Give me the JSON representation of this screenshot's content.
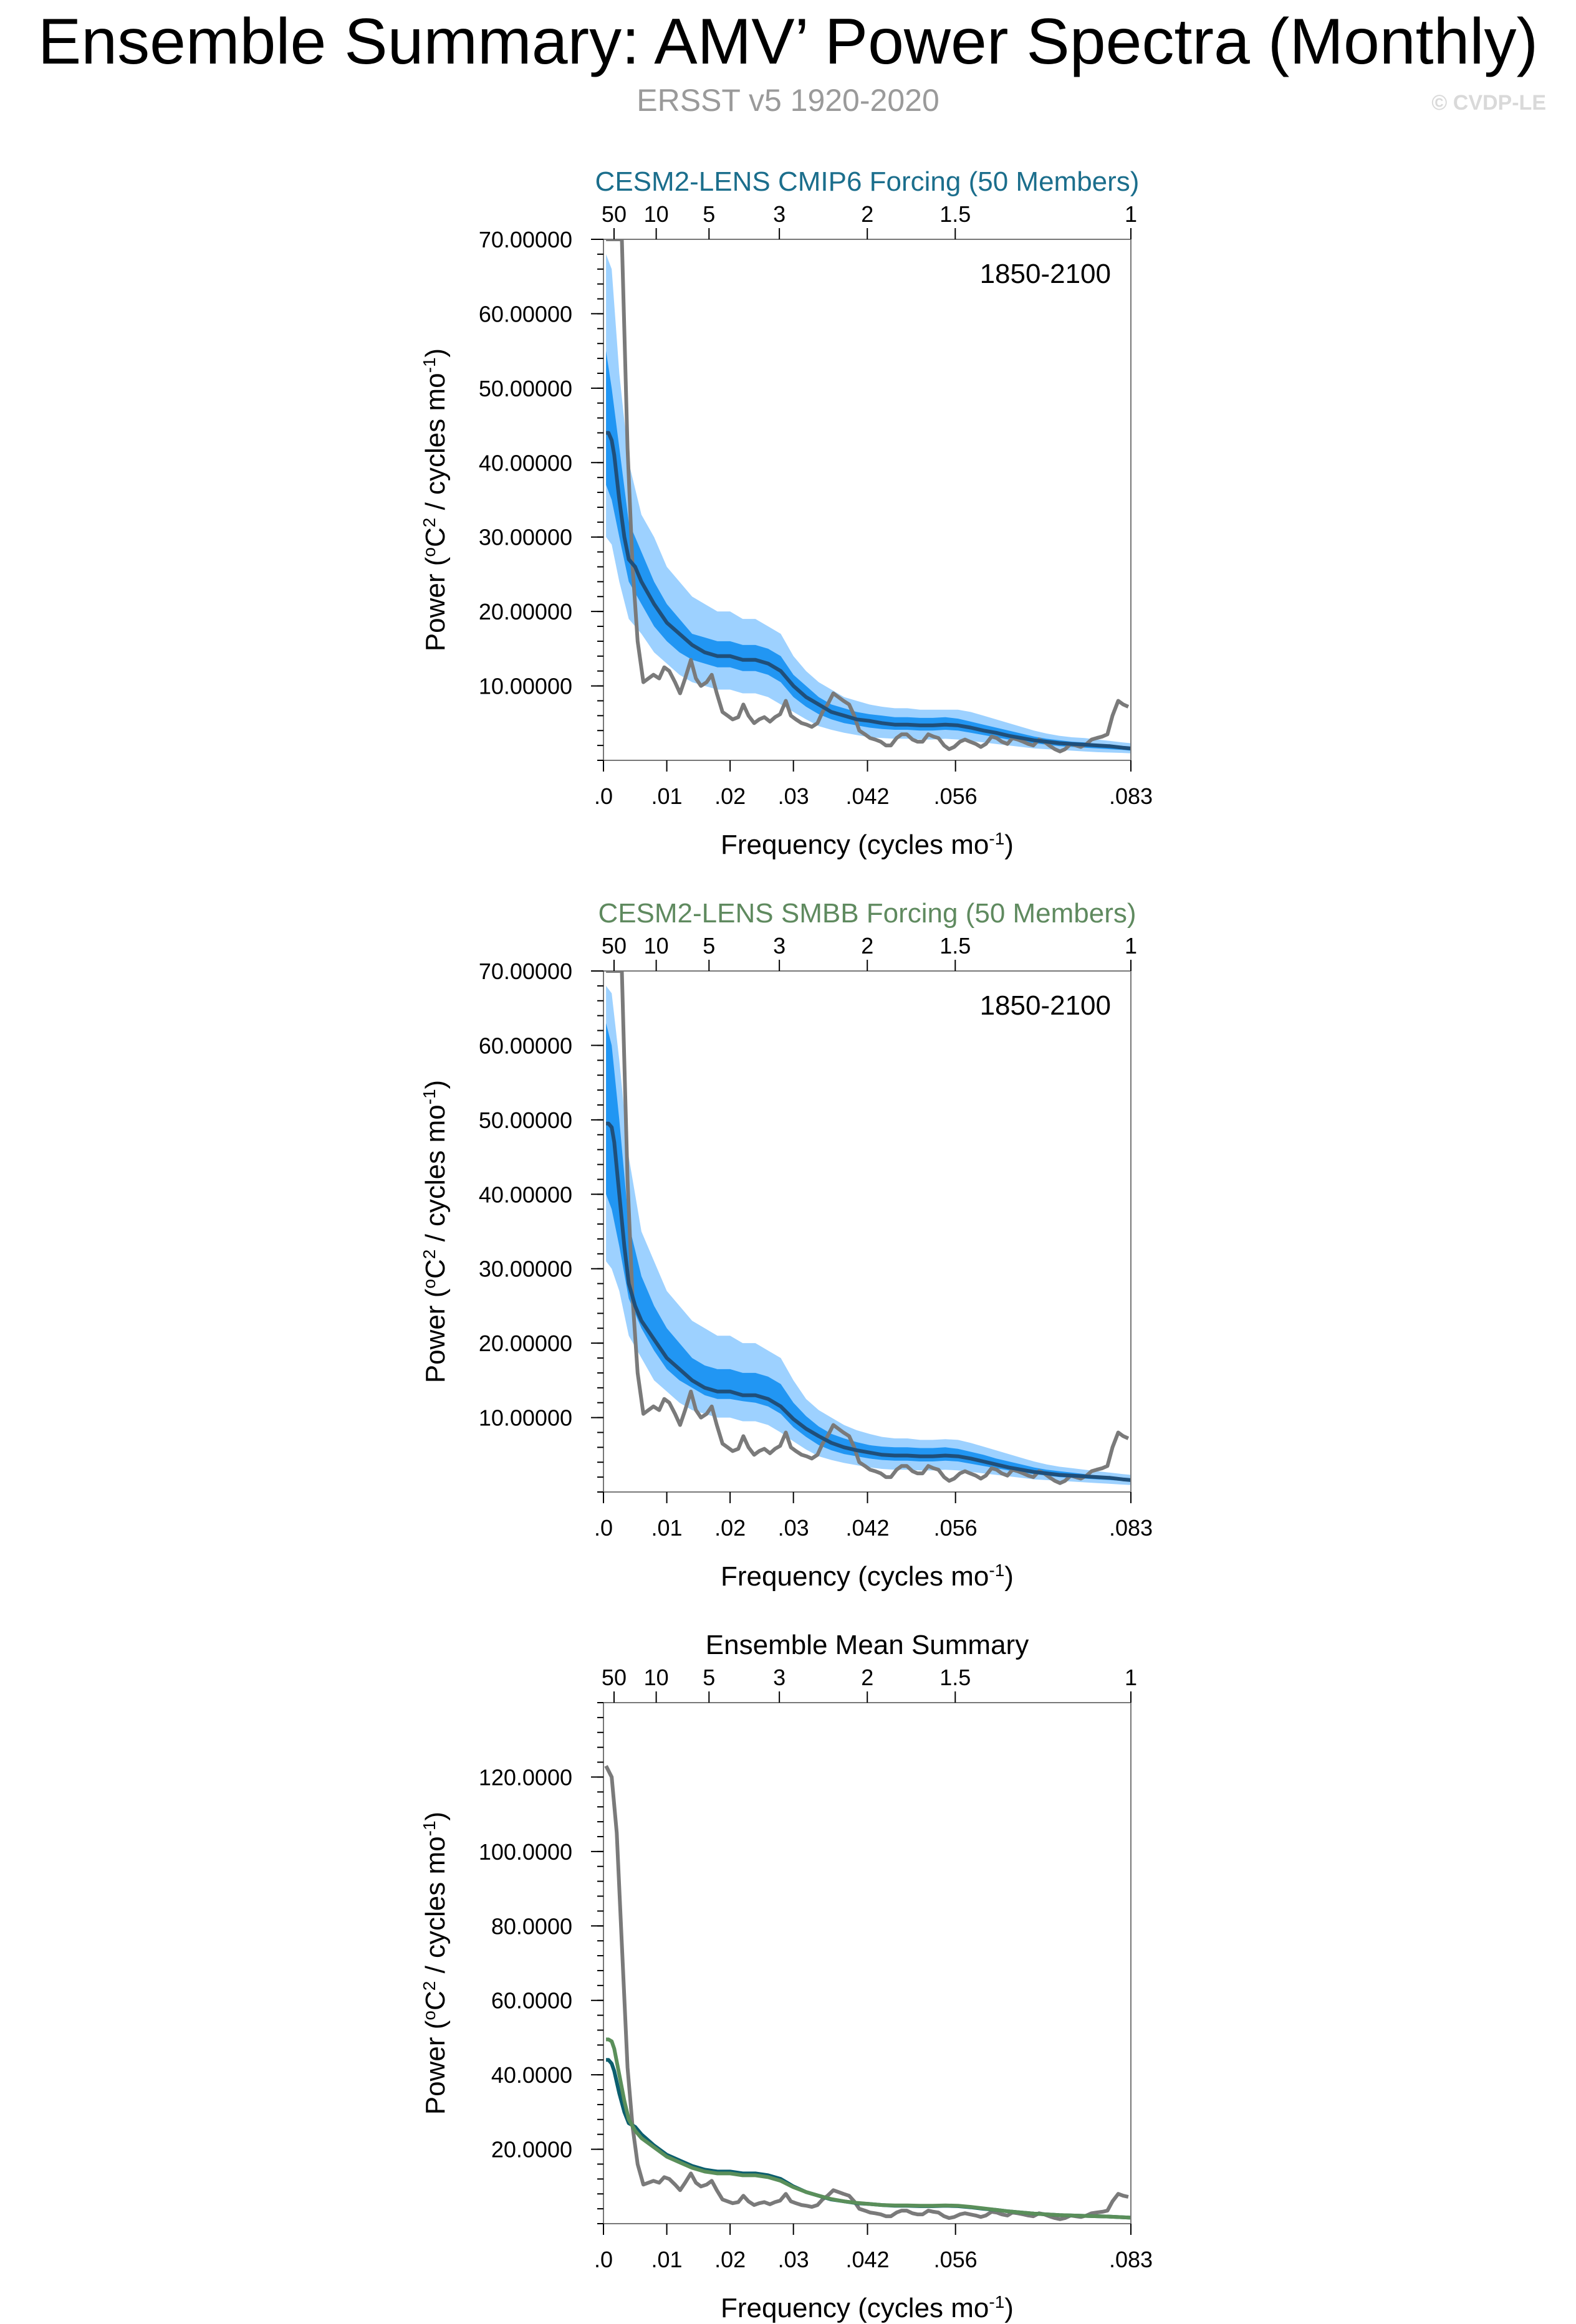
{
  "header": {
    "title": "Ensemble Summary: AMV’ Power Spectra (Monthly)",
    "subtitle": "ERSST v5 1920-2020",
    "credit": "© CVDP-LE"
  },
  "colors": {
    "obs": "#7a7a7a",
    "band_outer": "#9dd1ff",
    "band_inner": "#2196f3",
    "ens_mean": "#1f4f7a",
    "title_cmip6": "#1b6e8c",
    "title_smbb": "#5f8a5f",
    "mean_cmip6": "#0b5e6e",
    "mean_smbb": "#5a8f5a",
    "axis": "#000000"
  },
  "chart_data": [
    {
      "id": "cmip6",
      "type": "line",
      "title": "CESM2-LENS CMIP6 Forcing (50 Members)",
      "title_color": "#1b6e8c",
      "annotation": "1850-2100",
      "xlabel": "Frequency (cycles mo",
      "xlabel_sup": "-1",
      "ylabel": "Power (",
      "ylabel_sup1": "o",
      "ylabel_mid": "C",
      "ylabel_sup2": "2",
      "ylabel_tail": " / cycles mo",
      "ylabel_sup3": "-1",
      "xlim": [
        0,
        0.0833
      ],
      "ylim": [
        0,
        70
      ],
      "x_ticks": [
        0,
        0.01,
        0.02,
        0.03,
        0.0417,
        0.0556,
        0.0833
      ],
      "x_tick_labels": [
        ".0",
        ".01",
        ".02",
        ".03",
        ".042",
        ".056",
        ".083"
      ],
      "top_ticks": [
        0.00167,
        0.00833,
        0.01667,
        0.02778,
        0.04167,
        0.05556,
        0.0833
      ],
      "top_tick_labels": [
        "50",
        "10",
        "5",
        "3",
        "2",
        "1.5",
        "1"
      ],
      "y_ticks": [
        10,
        20,
        30,
        40,
        50,
        60,
        70
      ],
      "y_tick_labels": [
        "10.00000",
        "20.00000",
        "30.00000",
        "40.00000",
        "50.00000",
        "60.00000",
        "70.00000"
      ],
      "band_x": [
        0.0004,
        0.0013,
        0.0025,
        0.004,
        0.006,
        0.008,
        0.01,
        0.012,
        0.014,
        0.016,
        0.018,
        0.02,
        0.022,
        0.024,
        0.026,
        0.028,
        0.03,
        0.032,
        0.034,
        0.036,
        0.038,
        0.04,
        0.042,
        0.044,
        0.046,
        0.048,
        0.05,
        0.052,
        0.054,
        0.056,
        0.058,
        0.06,
        0.062,
        0.064,
        0.066,
        0.068,
        0.07,
        0.072,
        0.074,
        0.076,
        0.078,
        0.08,
        0.082,
        0.0833
      ],
      "outer_hi": [
        68,
        66,
        52,
        40,
        33,
        30,
        26,
        24,
        22,
        21,
        20,
        20,
        19,
        19,
        18,
        17,
        14,
        12,
        10.5,
        9.5,
        8.5,
        8,
        7.5,
        7.2,
        7,
        7,
        6.8,
        6.8,
        6.8,
        6.8,
        6.5,
        6,
        5.5,
        5,
        4.5,
        4,
        3.6,
        3.3,
        3.1,
        3,
        2.8,
        2.6,
        2.4,
        2.3
      ],
      "inner_hi": [
        55,
        50,
        42,
        32,
        28,
        24,
        21,
        19,
        17,
        16.5,
        16,
        16,
        15.5,
        15.5,
        15,
        14,
        11.5,
        10,
        8.5,
        7.5,
        7,
        6.5,
        6.2,
        6,
        5.8,
        5.8,
        5.7,
        5.7,
        5.8,
        5.6,
        5.2,
        4.8,
        4.4,
        4,
        3.6,
        3.2,
        2.9,
        2.7,
        2.5,
        2.4,
        2.2,
        2.1,
        1.9,
        1.8
      ],
      "inner_lo": [
        37,
        35,
        30,
        24,
        21,
        18,
        16,
        14.5,
        13.5,
        13,
        12.5,
        12.5,
        12,
        12,
        11.5,
        10.5,
        8.5,
        7.2,
        6.2,
        5.5,
        5,
        4.7,
        4.4,
        4.2,
        4.1,
        4.1,
        4,
        4,
        4.1,
        4,
        3.7,
        3.4,
        3.1,
        2.8,
        2.5,
        2.3,
        2.1,
        1.9,
        1.8,
        1.7,
        1.6,
        1.5,
        1.4,
        1.3
      ],
      "outer_lo": [
        30,
        29,
        24,
        19,
        17,
        14.5,
        13,
        11.5,
        10.5,
        10,
        9.5,
        9.5,
        9,
        9,
        8.5,
        7.5,
        6.5,
        5.5,
        4.6,
        4.1,
        3.7,
        3.4,
        3.1,
        3,
        2.9,
        2.9,
        2.8,
        2.8,
        2.9,
        2.8,
        2.6,
        2.4,
        2.2,
        2,
        1.8,
        1.6,
        1.5,
        1.4,
        1.3,
        1.2,
        1.1,
        1.05,
        1,
        0.95
      ],
      "mean_x": [
        0.0004,
        0.0008,
        0.0013,
        0.0017,
        0.0025,
        0.0033,
        0.004,
        0.005,
        0.006,
        0.008,
        0.01,
        0.012,
        0.014,
        0.016,
        0.018,
        0.02,
        0.022,
        0.024,
        0.026,
        0.028,
        0.03,
        0.032,
        0.034,
        0.036,
        0.038,
        0.04,
        0.042,
        0.044,
        0.046,
        0.048,
        0.05,
        0.052,
        0.054,
        0.056,
        0.058,
        0.06,
        0.062,
        0.064,
        0.066,
        0.068,
        0.07,
        0.072,
        0.074,
        0.076,
        0.078,
        0.08,
        0.082,
        0.0833
      ],
      "mean_values": [
        44,
        44,
        43,
        41,
        35,
        30,
        27,
        26,
        24,
        21,
        18.5,
        17,
        15.5,
        14.5,
        14,
        14,
        13.5,
        13.5,
        13,
        12,
        10,
        8.5,
        7.5,
        6.5,
        6,
        5.5,
        5.3,
        5,
        4.8,
        4.8,
        4.7,
        4.7,
        4.8,
        4.7,
        4.4,
        4,
        3.7,
        3.3,
        3,
        2.7,
        2.5,
        2.3,
        2.2,
        2.1,
        2,
        1.9,
        1.7,
        1.6
      ]
    },
    {
      "id": "smbb",
      "type": "line",
      "title": "CESM2-LENS SMBB Forcing (50 Members)",
      "title_color": "#5f8a5f",
      "annotation": "1850-2100",
      "xlabel": "Frequency (cycles mo",
      "xlabel_sup": "-1",
      "ylabel": "Power (",
      "ylabel_sup1": "o",
      "ylabel_mid": "C",
      "ylabel_sup2": "2",
      "ylabel_tail": " / cycles mo",
      "ylabel_sup3": "-1",
      "xlim": [
        0,
        0.0833
      ],
      "ylim": [
        0,
        70
      ],
      "x_ticks": [
        0,
        0.01,
        0.02,
        0.03,
        0.0417,
        0.0556,
        0.0833
      ],
      "x_tick_labels": [
        ".0",
        ".01",
        ".02",
        ".03",
        ".042",
        ".056",
        ".083"
      ],
      "top_ticks": [
        0.00167,
        0.00833,
        0.01667,
        0.02778,
        0.04167,
        0.05556,
        0.0833
      ],
      "top_tick_labels": [
        "50",
        "10",
        "5",
        "3",
        "2",
        "1.5",
        "1"
      ],
      "y_ticks": [
        10,
        20,
        30,
        40,
        50,
        60,
        70
      ],
      "y_tick_labels": [
        "10.00000",
        "20.00000",
        "30.00000",
        "40.00000",
        "50.00000",
        "60.00000",
        "70.00000"
      ],
      "band_x": [
        0.0004,
        0.0013,
        0.0025,
        0.004,
        0.006,
        0.008,
        0.01,
        0.012,
        0.014,
        0.016,
        0.018,
        0.02,
        0.022,
        0.024,
        0.026,
        0.028,
        0.03,
        0.032,
        0.034,
        0.036,
        0.038,
        0.04,
        0.042,
        0.044,
        0.046,
        0.048,
        0.05,
        0.052,
        0.054,
        0.056,
        0.058,
        0.06,
        0.062,
        0.064,
        0.066,
        0.068,
        0.07,
        0.072,
        0.074,
        0.076,
        0.078,
        0.08,
        0.082,
        0.0833
      ],
      "outer_hi": [
        68,
        67,
        58,
        45,
        35,
        31,
        27,
        25,
        23,
        22,
        21,
        21,
        20,
        20,
        19,
        18,
        15,
        12.5,
        11,
        10,
        9,
        8.3,
        7.8,
        7.4,
        7.2,
        7.2,
        7,
        7,
        7.1,
        7,
        6.6,
        6.1,
        5.6,
        5.1,
        4.6,
        4.1,
        3.7,
        3.4,
        3.2,
        3,
        2.8,
        2.6,
        2.4,
        2.3
      ],
      "inner_hi": [
        63,
        60,
        50,
        36,
        29,
        25,
        22,
        20,
        18,
        17,
        16.5,
        16.5,
        16,
        16,
        15.5,
        14.5,
        12,
        10.2,
        8.8,
        7.8,
        7.2,
        6.7,
        6.3,
        6.1,
        6,
        6,
        5.9,
        5.9,
        6,
        5.8,
        5.4,
        5,
        4.5,
        4.1,
        3.7,
        3.3,
        3,
        2.8,
        2.6,
        2.4,
        2.2,
        2.1,
        1.9,
        1.8
      ],
      "inner_lo": [
        40,
        38,
        33,
        26,
        22,
        19,
        16.5,
        15,
        14,
        13,
        12.5,
        12.5,
        12.2,
        12,
        11.5,
        10.5,
        8.7,
        7.4,
        6.3,
        5.6,
        5.1,
        4.8,
        4.5,
        4.3,
        4.2,
        4.2,
        4.1,
        4.1,
        4.2,
        4.1,
        3.8,
        3.5,
        3.2,
        2.9,
        2.6,
        2.4,
        2.2,
        2,
        1.9,
        1.8,
        1.7,
        1.6,
        1.5,
        1.4
      ],
      "outer_lo": [
        31,
        30,
        27,
        21,
        18,
        15,
        13.5,
        12,
        11,
        10.5,
        10,
        10,
        9.5,
        9.5,
        9,
        8,
        6.8,
        5.7,
        4.8,
        4.3,
        3.9,
        3.6,
        3.3,
        3.1,
        3,
        3,
        2.9,
        2.9,
        3,
        2.9,
        2.7,
        2.5,
        2.3,
        2.1,
        1.9,
        1.7,
        1.6,
        1.5,
        1.4,
        1.3,
        1.2,
        1.1,
        1,
        0.95
      ],
      "mean_x": [
        0.0004,
        0.0008,
        0.0013,
        0.0017,
        0.0025,
        0.0033,
        0.004,
        0.005,
        0.006,
        0.008,
        0.01,
        0.012,
        0.014,
        0.016,
        0.018,
        0.02,
        0.022,
        0.024,
        0.026,
        0.028,
        0.03,
        0.032,
        0.034,
        0.036,
        0.038,
        0.04,
        0.042,
        0.044,
        0.046,
        0.048,
        0.05,
        0.052,
        0.054,
        0.056,
        0.058,
        0.06,
        0.062,
        0.064,
        0.066,
        0.068,
        0.07,
        0.072,
        0.074,
        0.076,
        0.078,
        0.08,
        0.082,
        0.0833
      ],
      "mean_values": [
        49.5,
        49.5,
        49,
        47,
        40,
        33,
        28,
        25,
        23,
        20.5,
        18,
        16.5,
        15,
        14,
        13.5,
        13.5,
        13,
        13,
        12.5,
        11.5,
        9.8,
        8.5,
        7.5,
        6.6,
        6,
        5.6,
        5.3,
        5,
        4.9,
        4.9,
        4.8,
        4.8,
        4.9,
        4.8,
        4.5,
        4.1,
        3.7,
        3.3,
        3,
        2.7,
        2.5,
        2.3,
        2.2,
        2.1,
        2,
        1.9,
        1.7,
        1.6
      ]
    },
    {
      "id": "mean",
      "type": "line",
      "title": "Ensemble Mean Summary",
      "title_color": "#000000",
      "annotation": "",
      "xlabel": "Frequency (cycles mo",
      "xlabel_sup": "-1",
      "ylabel": "Power (",
      "ylabel_sup1": "o",
      "ylabel_mid": "C",
      "ylabel_sup2": "2",
      "ylabel_tail": " / cycles mo",
      "ylabel_sup3": "-1",
      "xlim": [
        0,
        0.0833
      ],
      "ylim": [
        0,
        140
      ],
      "x_ticks": [
        0,
        0.01,
        0.02,
        0.03,
        0.0417,
        0.0556,
        0.0833
      ],
      "x_tick_labels": [
        ".0",
        ".01",
        ".02",
        ".03",
        ".042",
        ".056",
        ".083"
      ],
      "top_ticks": [
        0.00167,
        0.00833,
        0.01667,
        0.02778,
        0.04167,
        0.05556,
        0.0833
      ],
      "top_tick_labels": [
        "50",
        "10",
        "5",
        "3",
        "2",
        "1.5",
        "1"
      ],
      "y_ticks": [
        20,
        40,
        60,
        80,
        100,
        120
      ],
      "y_tick_labels": [
        "20.0000",
        "40.0000",
        "60.0000",
        "80.0000",
        "100.0000",
        "120.0000"
      ],
      "series": [
        {
          "name": "ERSST v5 1920-2020",
          "key": "obs"
        },
        {
          "name": "CESM2-LENS CMIP6 Forcing",
          "key": "cmip6"
        },
        {
          "name": "CESM2-LENS SMBB Forcing",
          "key": "smbb"
        }
      ]
    }
  ],
  "obs_data": {
    "x": [
      0.0004,
      0.0013,
      0.0021,
      0.0029,
      0.0038,
      0.0046,
      0.0054,
      0.0063,
      0.0071,
      0.0079,
      0.0088,
      0.0096,
      0.0104,
      0.0113,
      0.0121,
      0.0129,
      0.0138,
      0.0146,
      0.0154,
      0.0163,
      0.0171,
      0.0179,
      0.0188,
      0.0196,
      0.0204,
      0.0213,
      0.0221,
      0.0229,
      0.0238,
      0.0246,
      0.0254,
      0.0263,
      0.0271,
      0.0279,
      0.0288,
      0.0296,
      0.0304,
      0.0313,
      0.0321,
      0.0329,
      0.0338,
      0.0346,
      0.0354,
      0.0363,
      0.0371,
      0.0379,
      0.0388,
      0.0396,
      0.0404,
      0.0413,
      0.0421,
      0.0429,
      0.0438,
      0.0446,
      0.0454,
      0.0463,
      0.0471,
      0.0479,
      0.0488,
      0.0496,
      0.0504,
      0.0513,
      0.0521,
      0.0529,
      0.0538,
      0.0546,
      0.0554,
      0.0563,
      0.0571,
      0.0579,
      0.0588,
      0.0596,
      0.0604,
      0.0613,
      0.0621,
      0.0629,
      0.0638,
      0.0646,
      0.0654,
      0.0663,
      0.0671,
      0.0679,
      0.0688,
      0.0696,
      0.0704,
      0.0713,
      0.0721,
      0.0729,
      0.0738,
      0.0746,
      0.0754,
      0.0763,
      0.0771,
      0.0779,
      0.0788,
      0.0796,
      0.0804,
      0.0813,
      0.0821,
      0.0829
    ],
    "values": [
      123,
      120,
      105,
      75,
      42,
      26,
      16,
      10.5,
      11,
      11.5,
      11,
      12.5,
      12,
      10.5,
      9,
      11,
      13.5,
      11,
      10,
      10.5,
      11.5,
      9,
      6.5,
      6,
      5.5,
      5.8,
      7.5,
      6,
      5,
      5.5,
      5.8,
      5.2,
      5.8,
      6.2,
      8,
      6,
      5.5,
      5,
      4.8,
      4.5,
      5,
      6.5,
      7.5,
      9,
      8.5,
      8,
      7.5,
      6,
      4,
      3.5,
      3,
      2.8,
      2.5,
      2,
      2,
      3,
      3.5,
      3.5,
      2.8,
      2.5,
      2.5,
      3.5,
      3.2,
      3,
      2,
      1.5,
      1.8,
      2.5,
      2.8,
      2.5,
      2.2,
      1.8,
      2.2,
      3.2,
      3,
      2.5,
      2.2,
      3,
      2.8,
      2.5,
      2.2,
      2,
      2.8,
      2.5,
      2,
      1.5,
      1.2,
      1.5,
      2.2,
      2,
      1.8,
      2.2,
      2.8,
      3,
      3.2,
      3.5,
      6,
      8,
      7.5,
      7.2
    ]
  }
}
